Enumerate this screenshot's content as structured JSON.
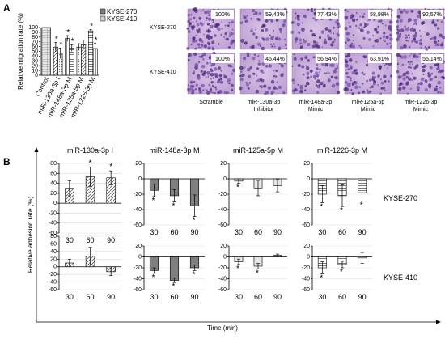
{
  "panel_a": {
    "letter": "A",
    "chart": {
      "ylabel": "Relative migration rate (%)",
      "yticks": [
        "0",
        "10",
        "20",
        "30",
        "40",
        "50",
        "60",
        "70",
        "80",
        "90",
        "100"
      ],
      "legend": [
        "KYSE-270",
        "KYSE-410"
      ],
      "categories": [
        "Control",
        "miR-130a-3p I",
        "miR-148a-3p M",
        "miR-125a-5p M",
        "miR-1226-3p M"
      ]
    },
    "micro_rows": [
      {
        "label": "KYSE-270",
        "percents": [
          "100%",
          "59,43%",
          "77,43%",
          "58,98%",
          "92,57%"
        ]
      },
      {
        "label": "KYSE-410",
        "percents": [
          "100%",
          "46,44%",
          "56,94%",
          "63,91%",
          "56,14%"
        ]
      }
    ],
    "micro_captions": [
      [
        "Scramble"
      ],
      [
        "miR-130a-3p",
        "Inhibitor"
      ],
      [
        "miR-148a-3p",
        "Mimic"
      ],
      [
        "miR-125a-5p",
        "Mimic"
      ],
      [
        "miR-1226-3p",
        "Mimic"
      ]
    ]
  },
  "panel_b": {
    "letter": "B",
    "ylabel": "Relative adhesion rate (%)",
    "xlabel": "Time (min)",
    "times": [
      "30",
      "60",
      "90"
    ],
    "row_labels": [
      "KYSE-270",
      "KYSE-410"
    ],
    "titles": [
      "miR-130a-3p I",
      "miR-148a-3p M",
      "miR-125a-5p M",
      "miR-1226-3p M"
    ],
    "yticks_main": [
      "-60",
      "-40",
      "-20",
      "0",
      "20",
      "40",
      "60",
      "80"
    ],
    "yticks_small": [
      "-60",
      "-40",
      "-20",
      "0",
      "20"
    ]
  },
  "chart_data": [
    {
      "type": "bar",
      "ylabel": "Relative migration rate (%)",
      "ylim": [
        0,
        100
      ],
      "categories": [
        "Control",
        "miR-130a-3p I",
        "miR-148a-3p M",
        "miR-125a-5p M",
        "miR-1226-3p M"
      ],
      "series": [
        {
          "name": "KYSE-270",
          "values": [
            100,
            59,
            77,
            59,
            93
          ],
          "errors": [
            0,
            10,
            6,
            7,
            3
          ],
          "significant": [
            false,
            true,
            true,
            false,
            true
          ]
        },
        {
          "name": "KYSE-410",
          "values": [
            100,
            46,
            57,
            64,
            56
          ],
          "errors": [
            0,
            11,
            7,
            10,
            11
          ],
          "significant": [
            false,
            true,
            true,
            false,
            true
          ]
        }
      ]
    },
    {
      "type": "bar",
      "ylabel": "Relative adhesion rate (%)",
      "xlabel": "Time (min)",
      "x": [
        30,
        60,
        90
      ],
      "panels": [
        {
          "title": "miR-130a-3p I",
          "row": "KYSE-270",
          "ylim": [
            -60,
            80
          ],
          "values": [
            30,
            53,
            51
          ],
          "errors": [
            15,
            20,
            14
          ],
          "significant": [
            false,
            true,
            true
          ]
        },
        {
          "title": "miR-148a-3p M",
          "row": "KYSE-270",
          "ylim": [
            -60,
            20
          ],
          "values": [
            -15,
            -22,
            -35
          ],
          "errors": [
            8,
            8,
            14
          ],
          "significant": [
            true,
            true,
            true
          ]
        },
        {
          "title": "miR-125a-5p M",
          "row": "KYSE-270",
          "ylim": [
            -60,
            20
          ],
          "values": [
            -3,
            -12,
            -9
          ],
          "errors": [
            3,
            10,
            8
          ],
          "significant": [
            true,
            false,
            false
          ]
        },
        {
          "title": "miR-1226-3p M",
          "row": "KYSE-270",
          "ylim": [
            -60,
            20
          ],
          "values": [
            -20,
            -22,
            -18
          ],
          "errors": [
            11,
            14,
            11
          ],
          "significant": [
            true,
            true,
            true
          ]
        },
        {
          "title": "miR-130a-3p I",
          "row": "KYSE-410",
          "ylim": [
            -60,
            80
          ],
          "values": [
            10,
            28,
            -13
          ],
          "errors": [
            10,
            23,
            10
          ],
          "significant": [
            false,
            false,
            false
          ]
        },
        {
          "title": "miR-148a-3p M",
          "row": "KYSE-410",
          "ylim": [
            -60,
            20
          ],
          "values": [
            -25,
            -43,
            -20
          ],
          "errors": [
            5,
            4,
            5
          ],
          "significant": [
            true,
            true,
            true
          ]
        },
        {
          "title": "miR-125a-5p M",
          "row": "KYSE-410",
          "ylim": [
            -60,
            20
          ],
          "values": [
            -9,
            -17,
            3
          ],
          "errors": [
            5,
            5,
            2
          ],
          "significant": [
            true,
            true,
            false
          ]
        },
        {
          "title": "miR-1226-3p M",
          "row": "KYSE-410",
          "ylim": [
            -60,
            20
          ],
          "values": [
            -20,
            -14,
            -2
          ],
          "errors": [
            11,
            6,
            10
          ],
          "significant": [
            true,
            true,
            false
          ]
        }
      ]
    }
  ]
}
